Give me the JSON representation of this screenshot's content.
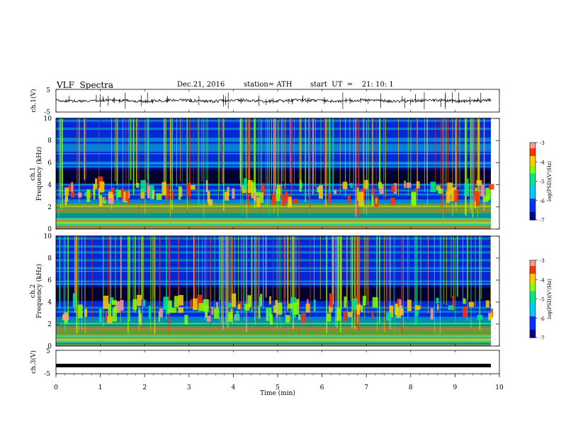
{
  "header": {
    "title": "VLF  Spectra",
    "date": "Dec.21, 2016",
    "station": "station= ATH",
    "start": "start  UT  =    21: 10: 1"
  },
  "chart_data": [
    {
      "type": "line",
      "name": "ch1-waveform",
      "ylabel": "ch.1(V)",
      "ylim": [
        -5,
        5
      ],
      "yticks": [
        "5",
        "-5"
      ],
      "xlim": [
        0,
        10
      ],
      "trace_level_v": 0,
      "color": "#000000"
    },
    {
      "type": "heatmap",
      "name": "ch1-spectrogram",
      "ylabel": "ch.1\nFrequency  (kHz)",
      "ylim": [
        0,
        10
      ],
      "yticks": [
        "0",
        "2",
        "4",
        "6",
        "8",
        "10"
      ],
      "xlim": [
        0,
        9.8
      ],
      "colorbar": {
        "label": "log(PSD)(V²/Hz)",
        "range": [
          -7,
          -3
        ],
        "ticks": [
          "-3",
          "-4",
          "-5",
          "-6",
          "-7"
        ]
      }
    },
    {
      "type": "heatmap",
      "name": "ch2-spectrogram",
      "ylabel": "ch.2\nFrequency  (kHz)",
      "ylim": [
        0,
        10
      ],
      "yticks": [
        "0",
        "2",
        "4",
        "6",
        "8",
        "10"
      ],
      "xlim": [
        0,
        9.8
      ],
      "colorbar": {
        "label": "log(PSD)(V²/Hz)",
        "range": [
          -7,
          -3
        ],
        "ticks": [
          "-3",
          "-4",
          "-5",
          "-6",
          "-7"
        ]
      }
    },
    {
      "type": "line",
      "name": "ch3-waveform",
      "ylabel": "ch.3(V)",
      "ylim": [
        -5,
        5
      ],
      "yticks": [
        "5",
        "-5"
      ],
      "xlim": [
        0,
        10
      ],
      "trace_level_v": -1.5,
      "color": "#000000"
    }
  ],
  "xaxis": {
    "label": "Time  (min)",
    "range": [
      0,
      10
    ],
    "ticks": [
      "0",
      "1",
      "2",
      "3",
      "4",
      "5",
      "6",
      "7",
      "8",
      "9",
      "10"
    ]
  }
}
